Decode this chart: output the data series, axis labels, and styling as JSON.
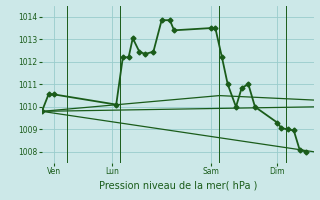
{
  "background_color": "#cce8e8",
  "grid_color": "#99cccc",
  "line_color": "#1a5c1a",
  "title": "Pression niveau de la mer( hPa )",
  "ylim": [
    1007.5,
    1014.5
  ],
  "yticks": [
    1008,
    1009,
    1010,
    1011,
    1012,
    1013,
    1014
  ],
  "xlim": [
    0,
    33
  ],
  "day_labels": [
    "Ven",
    "Lun",
    "Sam",
    "Dim"
  ],
  "day_positions": [
    1.5,
    8.5,
    20.5,
    28.5
  ],
  "vline_positions": [
    3.0,
    9.5,
    21.5,
    29.5
  ],
  "series_main": {
    "x": [
      0.0,
      0.8,
      1.5,
      9.0,
      9.8,
      10.5,
      11.0,
      11.8,
      12.5,
      13.5,
      14.5,
      15.5,
      16.0,
      20.5,
      21.0,
      21.8,
      22.5,
      23.5,
      24.2,
      25.0,
      25.8,
      28.5,
      29.0,
      29.8,
      30.5,
      31.2,
      32.0
    ],
    "y": [
      1009.8,
      1010.55,
      1010.55,
      1010.1,
      1012.2,
      1012.2,
      1013.05,
      1012.45,
      1012.35,
      1012.45,
      1013.85,
      1013.85,
      1013.4,
      1013.5,
      1013.5,
      1012.2,
      1011.0,
      1010.0,
      1010.85,
      1011.0,
      1010.0,
      1009.3,
      1009.05,
      1009.0,
      1008.95,
      1008.1,
      1008.0
    ],
    "marker": "D",
    "markersize": 2.5,
    "linewidth": 1.3
  },
  "series_flat1": {
    "x": [
      0.0,
      33.0
    ],
    "y": [
      1009.8,
      1010.0
    ],
    "linewidth": 0.9
  },
  "series_flat2": {
    "x": [
      0.0,
      21.5,
      33.0
    ],
    "y": [
      1009.8,
      1010.5,
      1010.3
    ],
    "linewidth": 0.9
  },
  "series_diag": {
    "x": [
      0.0,
      33.0
    ],
    "y": [
      1009.8,
      1008.0
    ],
    "linewidth": 0.9
  },
  "title_fontsize": 7,
  "tick_fontsize": 5.5
}
